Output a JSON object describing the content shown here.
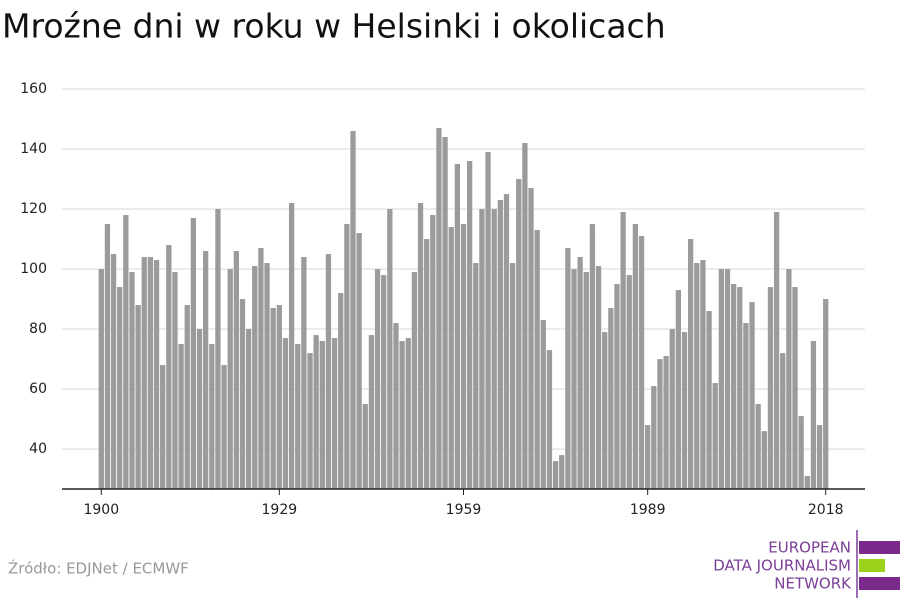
{
  "chart_data": {
    "type": "bar",
    "title": "Mroźne dni w roku w Helsinki i okolicach",
    "x": [
      1900,
      1901,
      1902,
      1903,
      1904,
      1905,
      1906,
      1907,
      1908,
      1909,
      1910,
      1911,
      1912,
      1913,
      1914,
      1915,
      1916,
      1917,
      1918,
      1919,
      1920,
      1921,
      1922,
      1923,
      1924,
      1925,
      1926,
      1927,
      1928,
      1929,
      1930,
      1931,
      1932,
      1933,
      1934,
      1935,
      1936,
      1937,
      1938,
      1939,
      1940,
      1941,
      1942,
      1943,
      1944,
      1945,
      1946,
      1947,
      1948,
      1949,
      1950,
      1951,
      1952,
      1953,
      1954,
      1955,
      1956,
      1957,
      1958,
      1959,
      1960,
      1961,
      1962,
      1963,
      1964,
      1965,
      1966,
      1967,
      1968,
      1969,
      1970,
      1971,
      1972,
      1973,
      1974,
      1975,
      1976,
      1977,
      1978,
      1979,
      1980,
      1981,
      1982,
      1983,
      1984,
      1985,
      1986,
      1987,
      1988,
      1989,
      1990,
      1991,
      1992,
      1993,
      1994,
      1995,
      1996,
      1997,
      1998,
      1999,
      2000,
      2001,
      2002,
      2003,
      2004,
      2005,
      2006,
      2007,
      2008,
      2009,
      2010,
      2011,
      2012,
      2013,
      2014,
      2015,
      2016,
      2017,
      2018
    ],
    "values": [
      100,
      115,
      105,
      94,
      118,
      99,
      88,
      104,
      104,
      103,
      68,
      108,
      99,
      75,
      88,
      117,
      80,
      106,
      75,
      120,
      68,
      100,
      106,
      90,
      80,
      101,
      107,
      102,
      87,
      88,
      77,
      122,
      75,
      104,
      72,
      78,
      76,
      105,
      77,
      92,
      115,
      146,
      112,
      55,
      78,
      100,
      98,
      120,
      82,
      76,
      77,
      99,
      122,
      110,
      118,
      147,
      144,
      114,
      135,
      115,
      136,
      102,
      120,
      139,
      120,
      123,
      125,
      102,
      130,
      142,
      127,
      113,
      83,
      73,
      36,
      38,
      107,
      100,
      104,
      99,
      115,
      101,
      79,
      87,
      95,
      119,
      98,
      115,
      111,
      48,
      61,
      70,
      71,
      80,
      93,
      79,
      110,
      102,
      103,
      86,
      62,
      100,
      100,
      95,
      94,
      82,
      89,
      55,
      46,
      94,
      119,
      72,
      100,
      94,
      51,
      31,
      76,
      48,
      90
    ],
    "color": "#9b9b9b",
    "xlim": [
      1893.6,
      2024.4
    ],
    "xticks": [
      1900,
      1929,
      1959,
      1989,
      2018
    ],
    "ylim": [
      26.7,
      165
    ],
    "yticks": [
      40,
      60,
      80,
      100,
      120,
      140,
      160
    ],
    "grid": true
  },
  "footer": {
    "source": "Źródło: EDJNet / ECMWF",
    "logo": [
      "EUROPEAN",
      "DATA JOURNALISM",
      "NETWORK"
    ]
  }
}
